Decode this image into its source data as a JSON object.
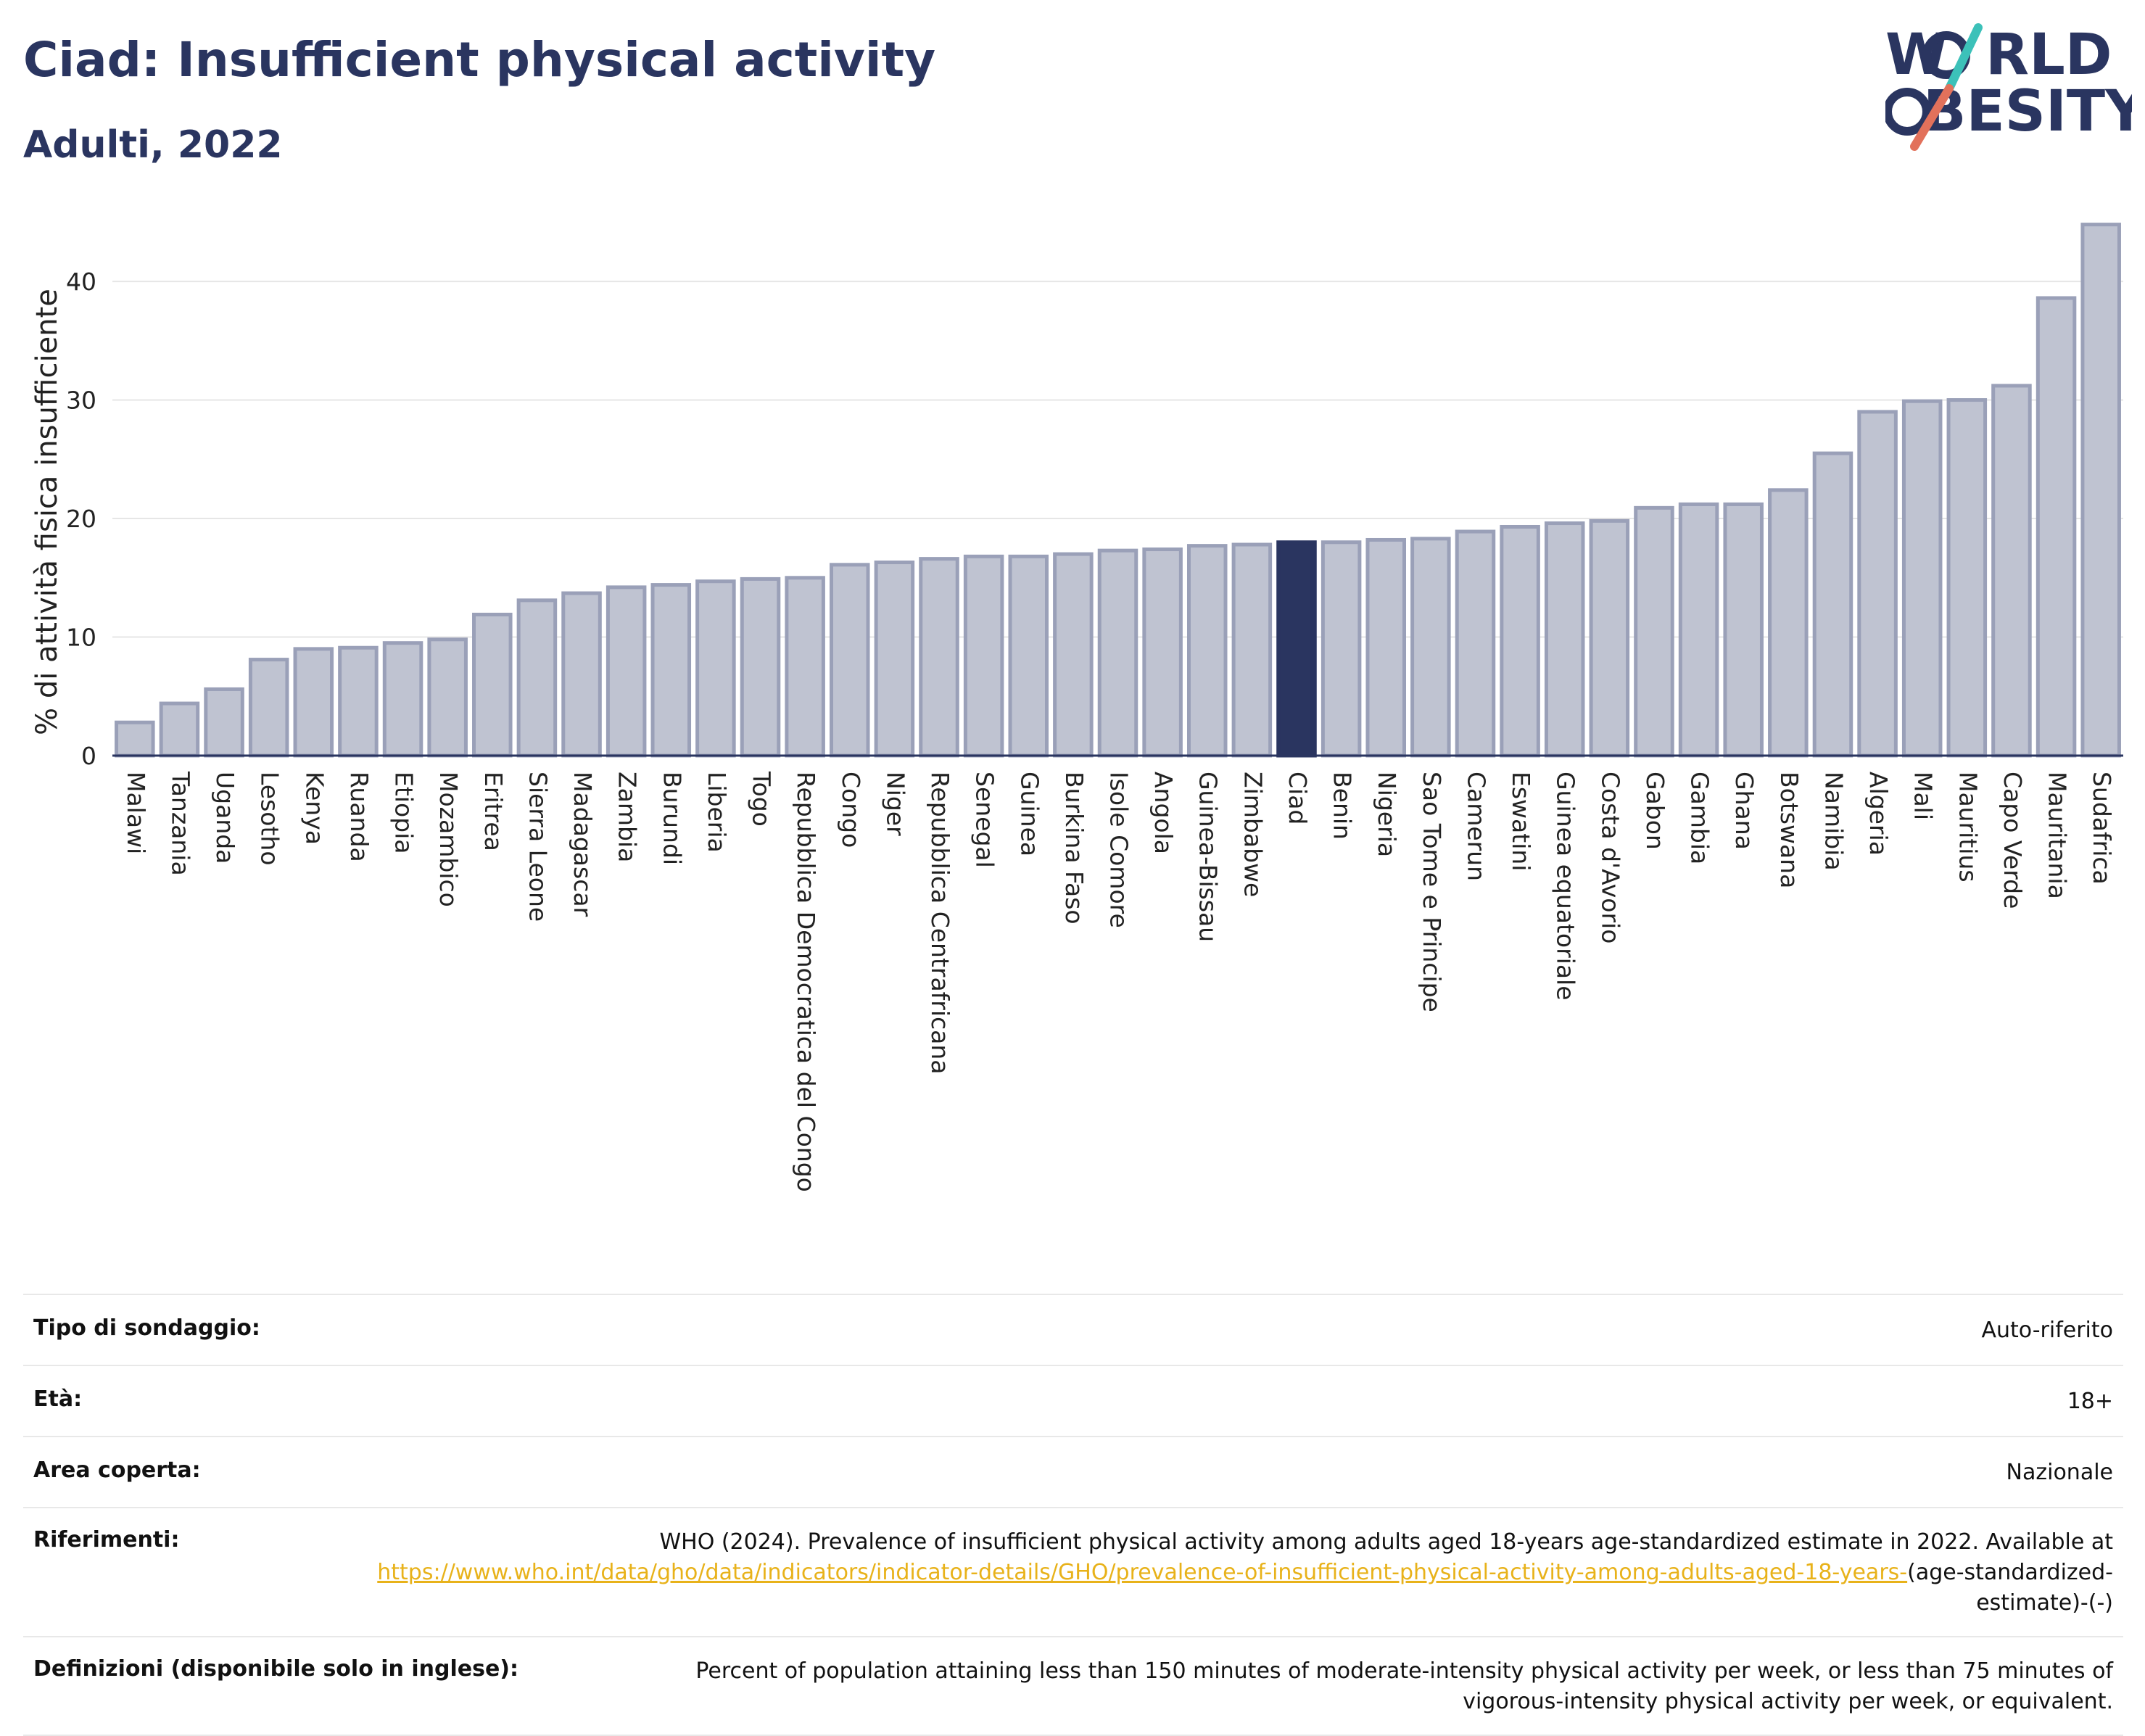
{
  "header": {
    "title": "Ciad: Insufficient physical activity",
    "subtitle": "Adulti, 2022"
  },
  "logo": {
    "line1": "W",
    "line1b": "RLD",
    "line2": "BESITY",
    "slash_colors": [
      "#3cc1b9",
      "#e2715b"
    ]
  },
  "colors": {
    "bar": "#bfc3d1",
    "bar_border": "#9aa0b8",
    "highlight": "#2a3560",
    "grid": "#e6e6e6",
    "axis": "#2a3560"
  },
  "chart_data": {
    "type": "bar",
    "ylabel": "% di attività fisica insufficiente",
    "ylim": [
      0,
      46
    ],
    "yticks": [
      0,
      10,
      20,
      30,
      40
    ],
    "grid": true,
    "highlight": "Ciad",
    "categories": [
      "Malawi",
      "Tanzania",
      "Uganda",
      "Lesotho",
      "Kenya",
      "Ruanda",
      "Etiopia",
      "Mozambico",
      "Eritrea",
      "Sierra Leone",
      "Madagascar",
      "Zambia",
      "Burundi",
      "Liberia",
      "Togo",
      "Repubblica Democratica del Congo",
      "Congo",
      "Niger",
      "Repubblica Centrafricana",
      "Senegal",
      "Guinea",
      "Burkina Faso",
      "Isole Comore",
      "Angola",
      "Guinea-Bissau",
      "Zimbabwe",
      "Ciad",
      "Benin",
      "Nigeria",
      "Sao Tome e Principe",
      "Camerun",
      "Eswatini",
      "Guinea equatoriale",
      "Costa d'Avorio",
      "Gabon",
      "Gambia",
      "Ghana",
      "Botswana",
      "Namibia",
      "Algeria",
      "Mali",
      "Mauritius",
      "Capo Verde",
      "Mauritania",
      "Sudafrica"
    ],
    "values": [
      2.8,
      4.4,
      5.6,
      8.1,
      9.0,
      9.1,
      9.5,
      9.8,
      11.9,
      13.1,
      13.7,
      14.2,
      14.4,
      14.7,
      14.9,
      15.0,
      16.1,
      16.3,
      16.6,
      16.8,
      16.8,
      17.0,
      17.3,
      17.4,
      17.7,
      17.8,
      18.0,
      18.0,
      18.2,
      18.3,
      18.9,
      19.3,
      19.6,
      19.8,
      20.9,
      21.2,
      21.2,
      22.4,
      25.5,
      29.0,
      29.9,
      30.0,
      31.2,
      38.6,
      44.8
    ]
  },
  "info": {
    "survey_type": {
      "label": "Tipo di sondaggio:",
      "value": "Auto-riferito"
    },
    "age": {
      "label": "Età:",
      "value": "18+"
    },
    "area": {
      "label": "Area coperta:",
      "value": "Nazionale"
    },
    "references": {
      "label": "Riferimenti:",
      "text": "WHO (2024). Prevalence of insufficient physical activity among adults aged 18-years age-standardized estimate in 2022. Available at",
      "link": "https://www.who.int/data/gho/data/indicators/indicator-details/GHO/prevalence-of-insufficient-physical-activity-among-adults-aged-18-years-",
      "suffix": "(age-standardized-estimate)-(-)"
    },
    "definitions": {
      "label": "Definizioni (disponibile solo in inglese):",
      "value": "Percent of population attaining less than 150 minutes of moderate-intensity physical activity per week, or less than 75 minutes of vigorous-intensity physical activity per week, or equivalent."
    }
  }
}
